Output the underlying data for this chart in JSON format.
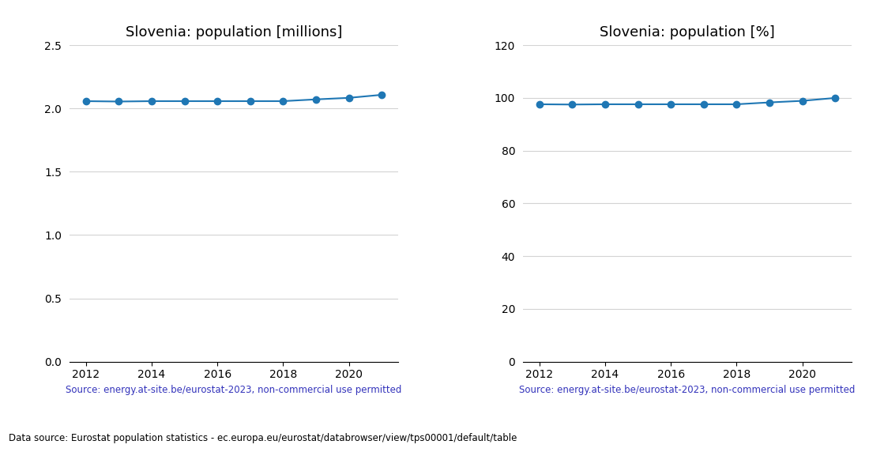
{
  "years": [
    2012,
    2013,
    2014,
    2015,
    2016,
    2017,
    2018,
    2019,
    2020,
    2021
  ],
  "population_millions": [
    2.058,
    2.055,
    2.058,
    2.058,
    2.058,
    2.058,
    2.058,
    2.072,
    2.084,
    2.108
  ],
  "population_pct": [
    97.6,
    97.5,
    97.6,
    97.6,
    97.6,
    97.6,
    97.6,
    98.3,
    98.9,
    100.0
  ],
  "title_millions": "Slovenia: population [millions]",
  "title_pct": "Slovenia: population [%]",
  "source_text": "Source: energy.at-site.be/eurostat-2023, non-commercial use permitted",
  "footer_text": "Data source: Eurostat population statistics - ec.europa.eu/eurostat/databrowser/view/tps00001/default/table",
  "line_color": "#1f77b4",
  "source_color": "#3333bb",
  "ylim_millions": [
    0.0,
    2.5
  ],
  "ylim_pct": [
    0,
    120
  ],
  "yticks_millions": [
    0.0,
    0.5,
    1.0,
    1.5,
    2.0,
    2.5
  ],
  "yticks_pct": [
    0,
    20,
    40,
    60,
    80,
    100,
    120
  ],
  "xlim": [
    2011.5,
    2021.5
  ],
  "xticks": [
    2012,
    2014,
    2016,
    2018,
    2020
  ]
}
